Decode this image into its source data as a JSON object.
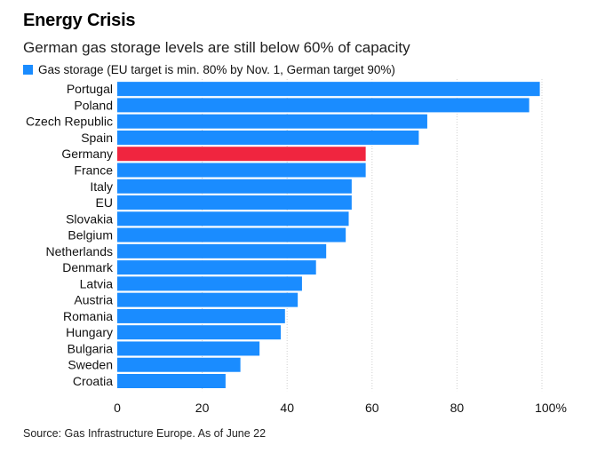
{
  "header": {
    "title": "Energy Crisis",
    "subtitle": "German gas storage levels are still below 60% of capacity"
  },
  "legend": {
    "label": "Gas storage (EU target is min. 80% by Nov. 1, German target 90%)",
    "color": "#1a8cff"
  },
  "footer": {
    "source": "Source: Gas Infrastructure Europe. As of June 22"
  },
  "colors": {
    "bar": "#1a8cff",
    "highlight": "#f0253f",
    "grid": "#cfcfcf"
  },
  "chart_data": {
    "type": "bar",
    "orientation": "horizontal",
    "title": "Energy Crisis",
    "subtitle": "German gas storage levels are still below 60% of capacity",
    "categories": [
      "Portugal",
      "Poland",
      "Czech Republic",
      "Spain",
      "Germany",
      "France",
      "Italy",
      "EU",
      "Slovakia",
      "Belgium",
      "Netherlands",
      "Denmark",
      "Latvia",
      "Austria",
      "Romania",
      "Hungary",
      "Bulgaria",
      "Sweden",
      "Croatia"
    ],
    "values": [
      99.5,
      97,
      73,
      71,
      58.5,
      58.5,
      55.2,
      55.2,
      54.5,
      53.8,
      49.2,
      46.8,
      43.5,
      42.5,
      39.5,
      38.5,
      33.5,
      29,
      25.5
    ],
    "highlight": "Germany",
    "series_name": "Gas storage (EU target is min. 80% by Nov. 1, German target 90%)",
    "xlim": [
      0,
      100
    ],
    "xticks": [
      0,
      20,
      40,
      60,
      80,
      100
    ],
    "xtick_labels": [
      "0",
      "20",
      "40",
      "60",
      "80",
      "100%"
    ],
    "grid": true,
    "source": "Source: Gas Infrastructure Europe. As of June 22"
  }
}
